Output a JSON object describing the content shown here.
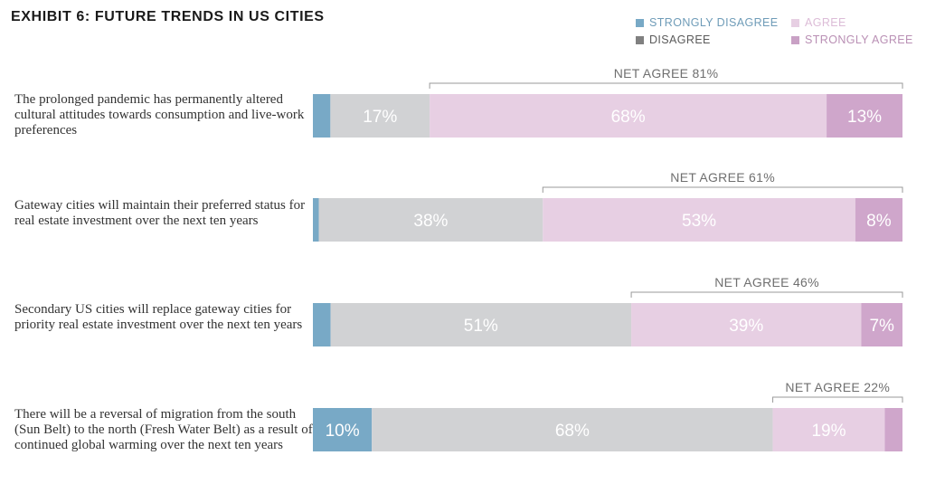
{
  "title": "EXHIBIT 6: FUTURE TRENDS IN US CITIES",
  "colors": {
    "strongly_disagree": "#78a9c6",
    "disagree": "#d1d2d4",
    "agree": "#e7cfe3",
    "strongly_agree": "#cfa6cb",
    "bracket": "#9a9a9a",
    "net_text": "#6f6f6f"
  },
  "legend": [
    {
      "key": "strongly_disagree",
      "label": "STRONGLY DISAGREE",
      "swatch": "#78a9c6",
      "text_color": "#6f9cb8"
    },
    {
      "key": "disagree",
      "label": "DISAGREE",
      "swatch": "#808080",
      "text_color": "#5a5a5a"
    },
    {
      "key": "agree",
      "label": "AGREE",
      "swatch": "#e7cfe3",
      "text_color": "#dcbcd7"
    },
    {
      "key": "strongly_agree",
      "label": "STRONGLY AGREE",
      "swatch": "#c9a1c5",
      "text_color": "#b98fb4"
    }
  ],
  "chart_data": {
    "type": "bar",
    "orientation": "horizontal",
    "stacked": true,
    "title": "EXHIBIT 6: FUTURE TRENDS IN US CITIES",
    "series": [
      {
        "name": "STRONGLY DISAGREE",
        "values": [
          3,
          1,
          3,
          10
        ]
      },
      {
        "name": "DISAGREE",
        "values": [
          17,
          38,
          51,
          68
        ]
      },
      {
        "name": "AGREE",
        "values": [
          68,
          53,
          39,
          19
        ]
      },
      {
        "name": "STRONGLY AGREE",
        "values": [
          13,
          8,
          7,
          3
        ]
      }
    ],
    "categories": [
      "The prolonged pandemic has permanently altered cultural attitudes towards consumption and live-work preferences",
      "Gateway cities will maintain their preferred status for real estate investment over the next ten years",
      "Secondary US cities will replace gateway cities for priority real estate investment over the next ten years",
      "There will be a reversal of migration from the south (Sun Belt) to the north (Fresh Water Belt) as a result of continued global warming over the next ten years"
    ],
    "data_labels": [
      [
        "",
        "17%",
        "68%",
        "13%"
      ],
      [
        "",
        "38%",
        "53%",
        "8%"
      ],
      [
        "",
        "51%",
        "39%",
        "7%"
      ],
      [
        "10%",
        "68%",
        "19%",
        ""
      ]
    ],
    "net_agree_labels": [
      "NET AGREE 81%",
      "NET AGREE 61%",
      "NET AGREE 46%",
      "NET AGREE 22%"
    ]
  }
}
